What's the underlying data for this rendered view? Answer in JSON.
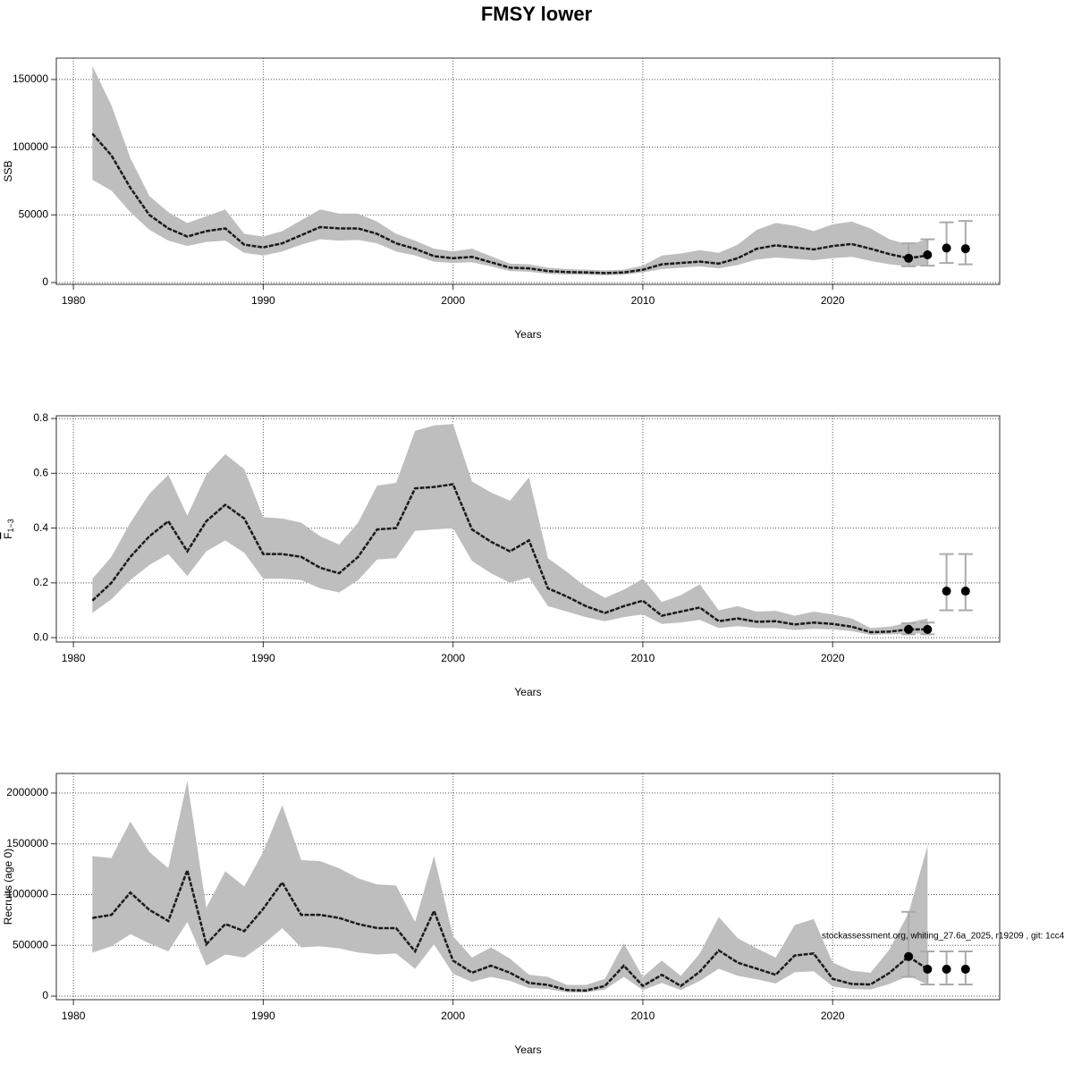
{
  "title": "FMSY lower",
  "annotation": "stockassessment.org, whiting_27.6a_2025, r19209 , git: 1cc4",
  "chart_data": [
    {
      "type": "line",
      "ylabel": "SSB",
      "xlabel": "Years",
      "x": [
        1981,
        1982,
        1983,
        1984,
        1985,
        1986,
        1987,
        1988,
        1989,
        1990,
        1991,
        1992,
        1993,
        1994,
        1995,
        1996,
        1997,
        1998,
        1999,
        2000,
        2001,
        2002,
        2003,
        2004,
        2005,
        2006,
        2007,
        2008,
        2009,
        2010,
        2011,
        2012,
        2013,
        2014,
        2015,
        2016,
        2017,
        2018,
        2019,
        2020,
        2021,
        2022,
        2023,
        2024,
        2025
      ],
      "values": [
        110000,
        94000,
        70000,
        50000,
        40000,
        34000,
        38000,
        40000,
        28000,
        26000,
        29000,
        35000,
        41000,
        40000,
        40000,
        36000,
        29000,
        25000,
        19500,
        18000,
        19000,
        15000,
        11000,
        10500,
        8500,
        7800,
        7500,
        7000,
        7500,
        9500,
        13500,
        14500,
        15500,
        14000,
        18000,
        25000,
        27500,
        26000,
        24500,
        27000,
        28500,
        25000,
        21000,
        18000,
        20000
      ],
      "lower": [
        76000,
        68000,
        52000,
        39000,
        31000,
        27000,
        30000,
        31000,
        22000,
        20000,
        23000,
        28000,
        32000,
        31000,
        31500,
        29000,
        23000,
        20000,
        15500,
        14500,
        15000,
        12000,
        8500,
        8000,
        6500,
        6000,
        5800,
        5500,
        5800,
        7500,
        10000,
        11000,
        12000,
        10500,
        13000,
        17000,
        18500,
        17500,
        16500,
        18000,
        19000,
        16000,
        13500,
        12000,
        12500
      ],
      "upper": [
        160000,
        131000,
        92000,
        64000,
        52000,
        44000,
        49000,
        54000,
        36000,
        34000,
        38000,
        46000,
        54000,
        51000,
        51000,
        45000,
        36000,
        31000,
        25000,
        23000,
        25000,
        19500,
        14000,
        13500,
        11000,
        10000,
        9500,
        9000,
        9500,
        12500,
        20000,
        21500,
        24000,
        22000,
        28000,
        39000,
        44000,
        42000,
        38000,
        43000,
        45000,
        40000,
        32000,
        28000,
        32000
      ],
      "forecast": {
        "x": [
          2024,
          2025,
          2026,
          2027
        ],
        "values": [
          18000,
          20500,
          25500,
          25000
        ],
        "lower": [
          12000,
          12500,
          14500,
          13500
        ],
        "upper": [
          29000,
          32000,
          44500,
          45500
        ]
      },
      "xlim": [
        1979.1,
        2028.8
      ],
      "ylim": [
        -1300,
        165800
      ],
      "xticks": [
        1980,
        1990,
        2000,
        2010,
        2020
      ],
      "yticks": [
        0,
        50000,
        100000,
        150000
      ],
      "grid": true,
      "band_color": "#bebebe",
      "line_color": "#1a1a1a",
      "forecast_color": "#000000",
      "errorbar_color": "#aaaaaa"
    },
    {
      "type": "line",
      "ylabel": "F",
      "ylabel_sub": "1−3",
      "xlabel": "Years",
      "x": [
        1981,
        1982,
        1983,
        1984,
        1985,
        1986,
        1987,
        1988,
        1989,
        1990,
        1991,
        1992,
        1993,
        1994,
        1995,
        1996,
        1997,
        1998,
        1999,
        2000,
        2001,
        2002,
        2003,
        2004,
        2005,
        2006,
        2007,
        2008,
        2009,
        2010,
        2011,
        2012,
        2013,
        2014,
        2015,
        2016,
        2017,
        2018,
        2019,
        2020,
        2021,
        2022,
        2023,
        2024,
        2025
      ],
      "values": [
        0.135,
        0.2,
        0.295,
        0.37,
        0.425,
        0.315,
        0.425,
        0.485,
        0.435,
        0.305,
        0.305,
        0.295,
        0.255,
        0.235,
        0.295,
        0.395,
        0.4,
        0.545,
        0.55,
        0.56,
        0.395,
        0.35,
        0.315,
        0.355,
        0.18,
        0.15,
        0.115,
        0.09,
        0.115,
        0.135,
        0.08,
        0.095,
        0.11,
        0.06,
        0.07,
        0.058,
        0.06,
        0.048,
        0.055,
        0.05,
        0.04,
        0.02,
        0.022,
        0.03,
        0.03
      ],
      "lower": [
        0.09,
        0.14,
        0.21,
        0.265,
        0.305,
        0.225,
        0.315,
        0.355,
        0.31,
        0.215,
        0.215,
        0.21,
        0.18,
        0.165,
        0.21,
        0.285,
        0.29,
        0.39,
        0.395,
        0.4,
        0.28,
        0.235,
        0.2,
        0.22,
        0.115,
        0.095,
        0.075,
        0.06,
        0.075,
        0.085,
        0.05,
        0.055,
        0.065,
        0.035,
        0.042,
        0.035,
        0.035,
        0.028,
        0.032,
        0.03,
        0.024,
        0.01,
        0.012,
        0.015,
        0.015
      ],
      "upper": [
        0.215,
        0.295,
        0.42,
        0.525,
        0.595,
        0.445,
        0.595,
        0.67,
        0.615,
        0.44,
        0.435,
        0.42,
        0.37,
        0.34,
        0.42,
        0.555,
        0.565,
        0.755,
        0.775,
        0.78,
        0.57,
        0.53,
        0.5,
        0.585,
        0.29,
        0.24,
        0.185,
        0.145,
        0.175,
        0.215,
        0.13,
        0.155,
        0.195,
        0.1,
        0.115,
        0.095,
        0.098,
        0.08,
        0.095,
        0.085,
        0.07,
        0.035,
        0.04,
        0.055,
        0.07
      ],
      "forecast": {
        "x": [
          2024,
          2025,
          2026,
          2027
        ],
        "values": [
          0.03,
          0.03,
          0.17,
          0.17
        ],
        "lower": [
          0.012,
          0.012,
          0.1,
          0.1
        ],
        "upper": [
          0.052,
          0.055,
          0.305,
          0.305
        ]
      },
      "xlim": [
        1979.1,
        2028.8
      ],
      "ylim": [
        -0.016,
        0.81
      ],
      "xticks": [
        1980,
        1990,
        2000,
        2010,
        2020
      ],
      "yticks": [
        {
          "value": 0,
          "label": "0.0"
        },
        0.2,
        0.4,
        0.6,
        0.8
      ],
      "grid": true,
      "band_color": "#bebebe",
      "line_color": "#1a1a1a",
      "forecast_color": "#000000",
      "errorbar_color": "#aaaaaa"
    },
    {
      "type": "line",
      "ylabel": "Recruits (age 0)",
      "xlabel": "Years",
      "x": [
        1981,
        1982,
        1983,
        1984,
        1985,
        1986,
        1987,
        1988,
        1989,
        1990,
        1991,
        1992,
        1993,
        1994,
        1995,
        1996,
        1997,
        1998,
        1999,
        2000,
        2001,
        2002,
        2003,
        2004,
        2005,
        2006,
        2007,
        2008,
        2009,
        2010,
        2011,
        2012,
        2013,
        2014,
        2015,
        2016,
        2017,
        2018,
        2019,
        2020,
        2021,
        2022,
        2023,
        2024,
        2025
      ],
      "values": [
        770000,
        800000,
        1020000,
        850000,
        740000,
        1240000,
        510000,
        710000,
        640000,
        860000,
        1120000,
        800000,
        800000,
        770000,
        710000,
        670000,
        670000,
        440000,
        840000,
        350000,
        230000,
        300000,
        230000,
        130000,
        110000,
        60000,
        55000,
        100000,
        300000,
        100000,
        210000,
        100000,
        240000,
        450000,
        330000,
        270000,
        210000,
        400000,
        420000,
        170000,
        120000,
        115000,
        230000,
        390000,
        265000
      ],
      "lower": [
        430000,
        490000,
        610000,
        520000,
        440000,
        730000,
        300000,
        410000,
        380000,
        510000,
        670000,
        480000,
        490000,
        470000,
        430000,
        410000,
        420000,
        270000,
        510000,
        220000,
        140000,
        190000,
        150000,
        80000,
        70000,
        38000,
        35000,
        65000,
        190000,
        60000,
        130000,
        60000,
        150000,
        270000,
        200000,
        165000,
        125000,
        235000,
        245000,
        95000,
        70000,
        65000,
        120000,
        200000,
        115000
      ],
      "upper": [
        1380000,
        1360000,
        1720000,
        1420000,
        1260000,
        2120000,
        870000,
        1230000,
        1080000,
        1420000,
        1880000,
        1340000,
        1330000,
        1260000,
        1160000,
        1100000,
        1090000,
        730000,
        1380000,
        590000,
        380000,
        480000,
        370000,
        210000,
        190000,
        110000,
        110000,
        170000,
        520000,
        190000,
        350000,
        200000,
        420000,
        780000,
        570000,
        470000,
        380000,
        700000,
        760000,
        330000,
        250000,
        230000,
        460000,
        820000,
        1480000
      ],
      "forecast": {
        "x": [
          2024,
          2025,
          2026,
          2027
        ],
        "values": [
          390000,
          265000,
          265000,
          265000
        ],
        "lower": [
          190000,
          115000,
          115000,
          115000
        ],
        "upper": [
          830000,
          440000,
          440000,
          440000
        ]
      },
      "xlim": [
        1979.1,
        2028.8
      ],
      "ylim": [
        -35000,
        2193000
      ],
      "xticks": [
        1980,
        1990,
        2000,
        2010,
        2020
      ],
      "yticks": [
        0,
        500000,
        1000000,
        1500000,
        2000000
      ],
      "grid": true,
      "band_color": "#bebebe",
      "line_color": "#1a1a1a",
      "forecast_color": "#000000",
      "errorbar_color": "#aaaaaa"
    }
  ]
}
